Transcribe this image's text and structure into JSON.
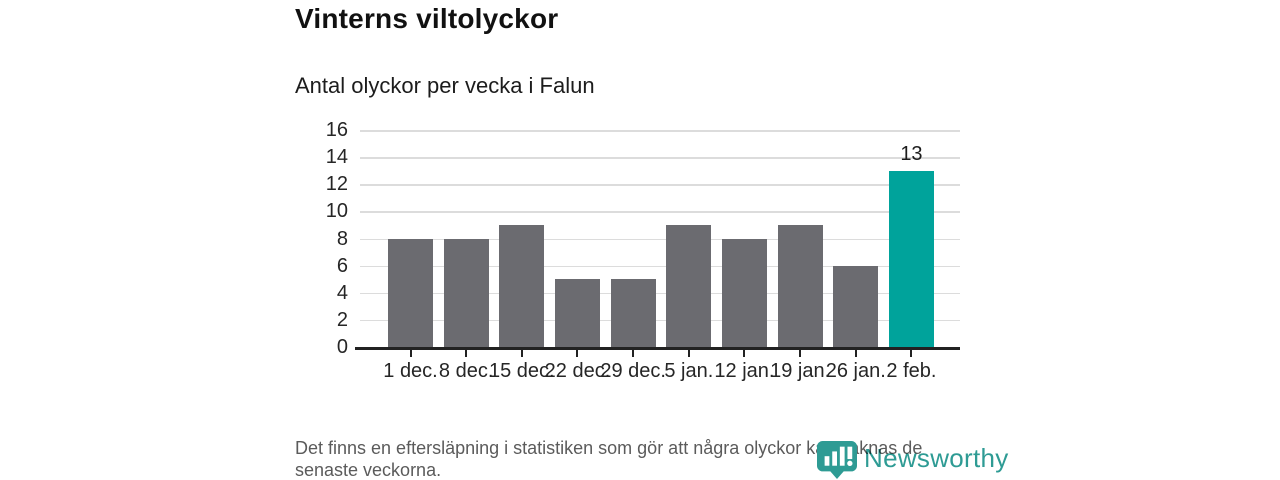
{
  "chart_data": {
    "type": "bar",
    "title": "Vinterns viltolyckor",
    "subtitle": "Antal olyckor per vecka i Falun",
    "categories": [
      "1 dec.",
      "8 dec.",
      "15 dec.",
      "22 dec.",
      "29 dec.",
      "5 jan.",
      "12 jan.",
      "19 jan.",
      "26 jan.",
      "2 feb."
    ],
    "values": [
      8,
      8,
      9,
      5,
      5,
      9,
      8,
      9,
      6,
      13
    ],
    "highlight_index": 9,
    "data_label": {
      "index": 9,
      "text": "13"
    },
    "xlabel": "",
    "ylabel": "",
    "ylim": [
      0,
      16
    ],
    "yticks": [
      0,
      2,
      4,
      6,
      8,
      10,
      12,
      14,
      16
    ],
    "grid": "horizontal",
    "legend": "none",
    "colors": {
      "bar": "#6b6b70",
      "highlight": "#00a39b",
      "gridline": "#dcdcdc",
      "axis": "#222222"
    }
  },
  "footer": {
    "note": "Det finns en eftersläpning i statistiken som gör att några olyckor kan saknas de senaste veckorna."
  },
  "branding": {
    "name": "Newsworthy",
    "logo_icon": "bar-chart-bubble-icon",
    "color": "#2e9b94"
  }
}
